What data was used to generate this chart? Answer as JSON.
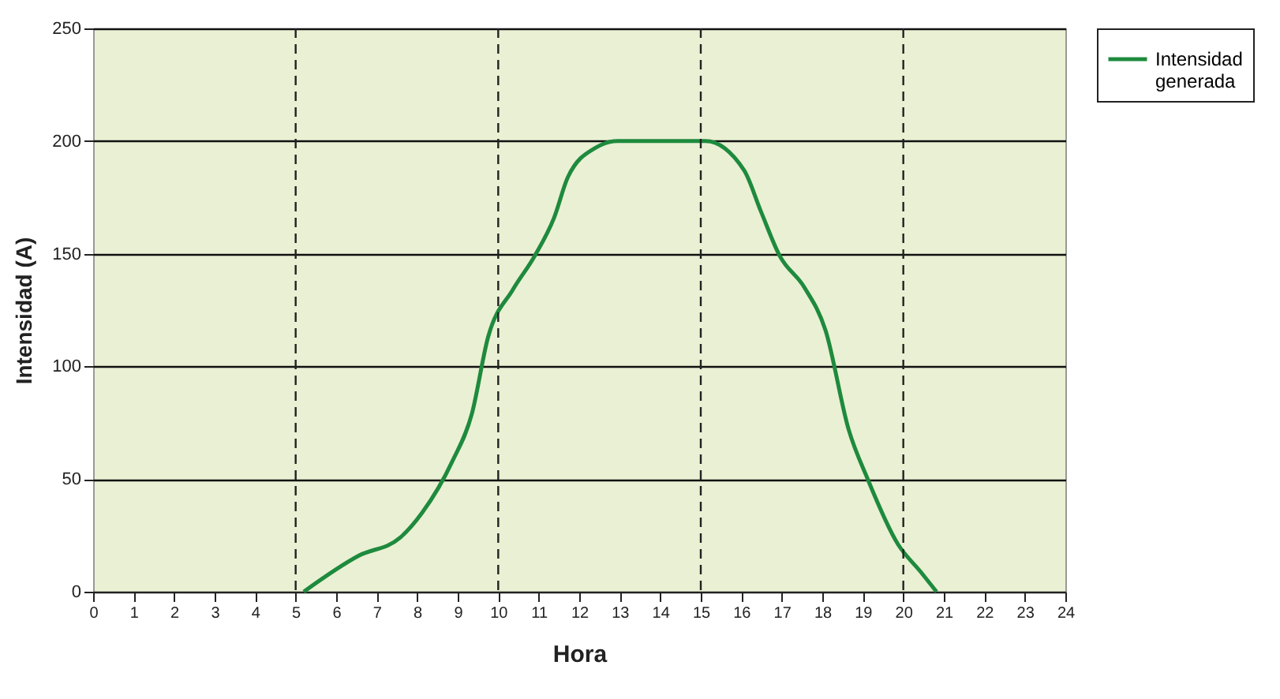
{
  "chart_data": {
    "type": "line",
    "xlabel": "Hora",
    "ylabel": "Intensidad (A)",
    "series": [
      {
        "name": "Intensidad generada",
        "color": "#1e8a3e",
        "x": [
          5.2,
          6.56,
          7.58,
          8.12,
          8.87,
          9.35,
          9.75,
          10.36,
          10.9,
          11.38,
          11.72,
          12.4,
          12.95,
          14,
          15.12,
          16.07,
          16.48,
          16.95,
          17.56,
          18.08,
          18.65,
          19.12,
          19.87,
          20.42,
          20.82
        ],
        "values": [
          0,
          16,
          24,
          35,
          58,
          79,
          113,
          134,
          149,
          166,
          184,
          197,
          200,
          200,
          200,
          187,
          169,
          149,
          135,
          116,
          72,
          50,
          21,
          9,
          0
        ]
      }
    ],
    "xlim": [
      0,
      24
    ],
    "xticks": [
      0,
      1,
      2,
      3,
      4,
      5,
      6,
      7,
      8,
      9,
      10,
      11,
      12,
      13,
      14,
      15,
      16,
      17,
      18,
      19,
      20,
      21,
      22,
      23,
      24
    ],
    "ylim": [
      0,
      250
    ],
    "yticks": [
      0,
      50,
      100,
      150,
      200,
      250
    ],
    "grid": "y",
    "legend": "right",
    "line_style": "solid",
    "marker": "none",
    "ref_lines": [
      {
        "axis": "x",
        "value": 5,
        "line_style": "dashed"
      },
      {
        "axis": "x",
        "value": 10,
        "line_style": "dashed"
      },
      {
        "axis": "x",
        "value": 15,
        "line_style": "dashed"
      },
      {
        "axis": "x",
        "value": 20,
        "line_style": "dashed"
      }
    ]
  }
}
